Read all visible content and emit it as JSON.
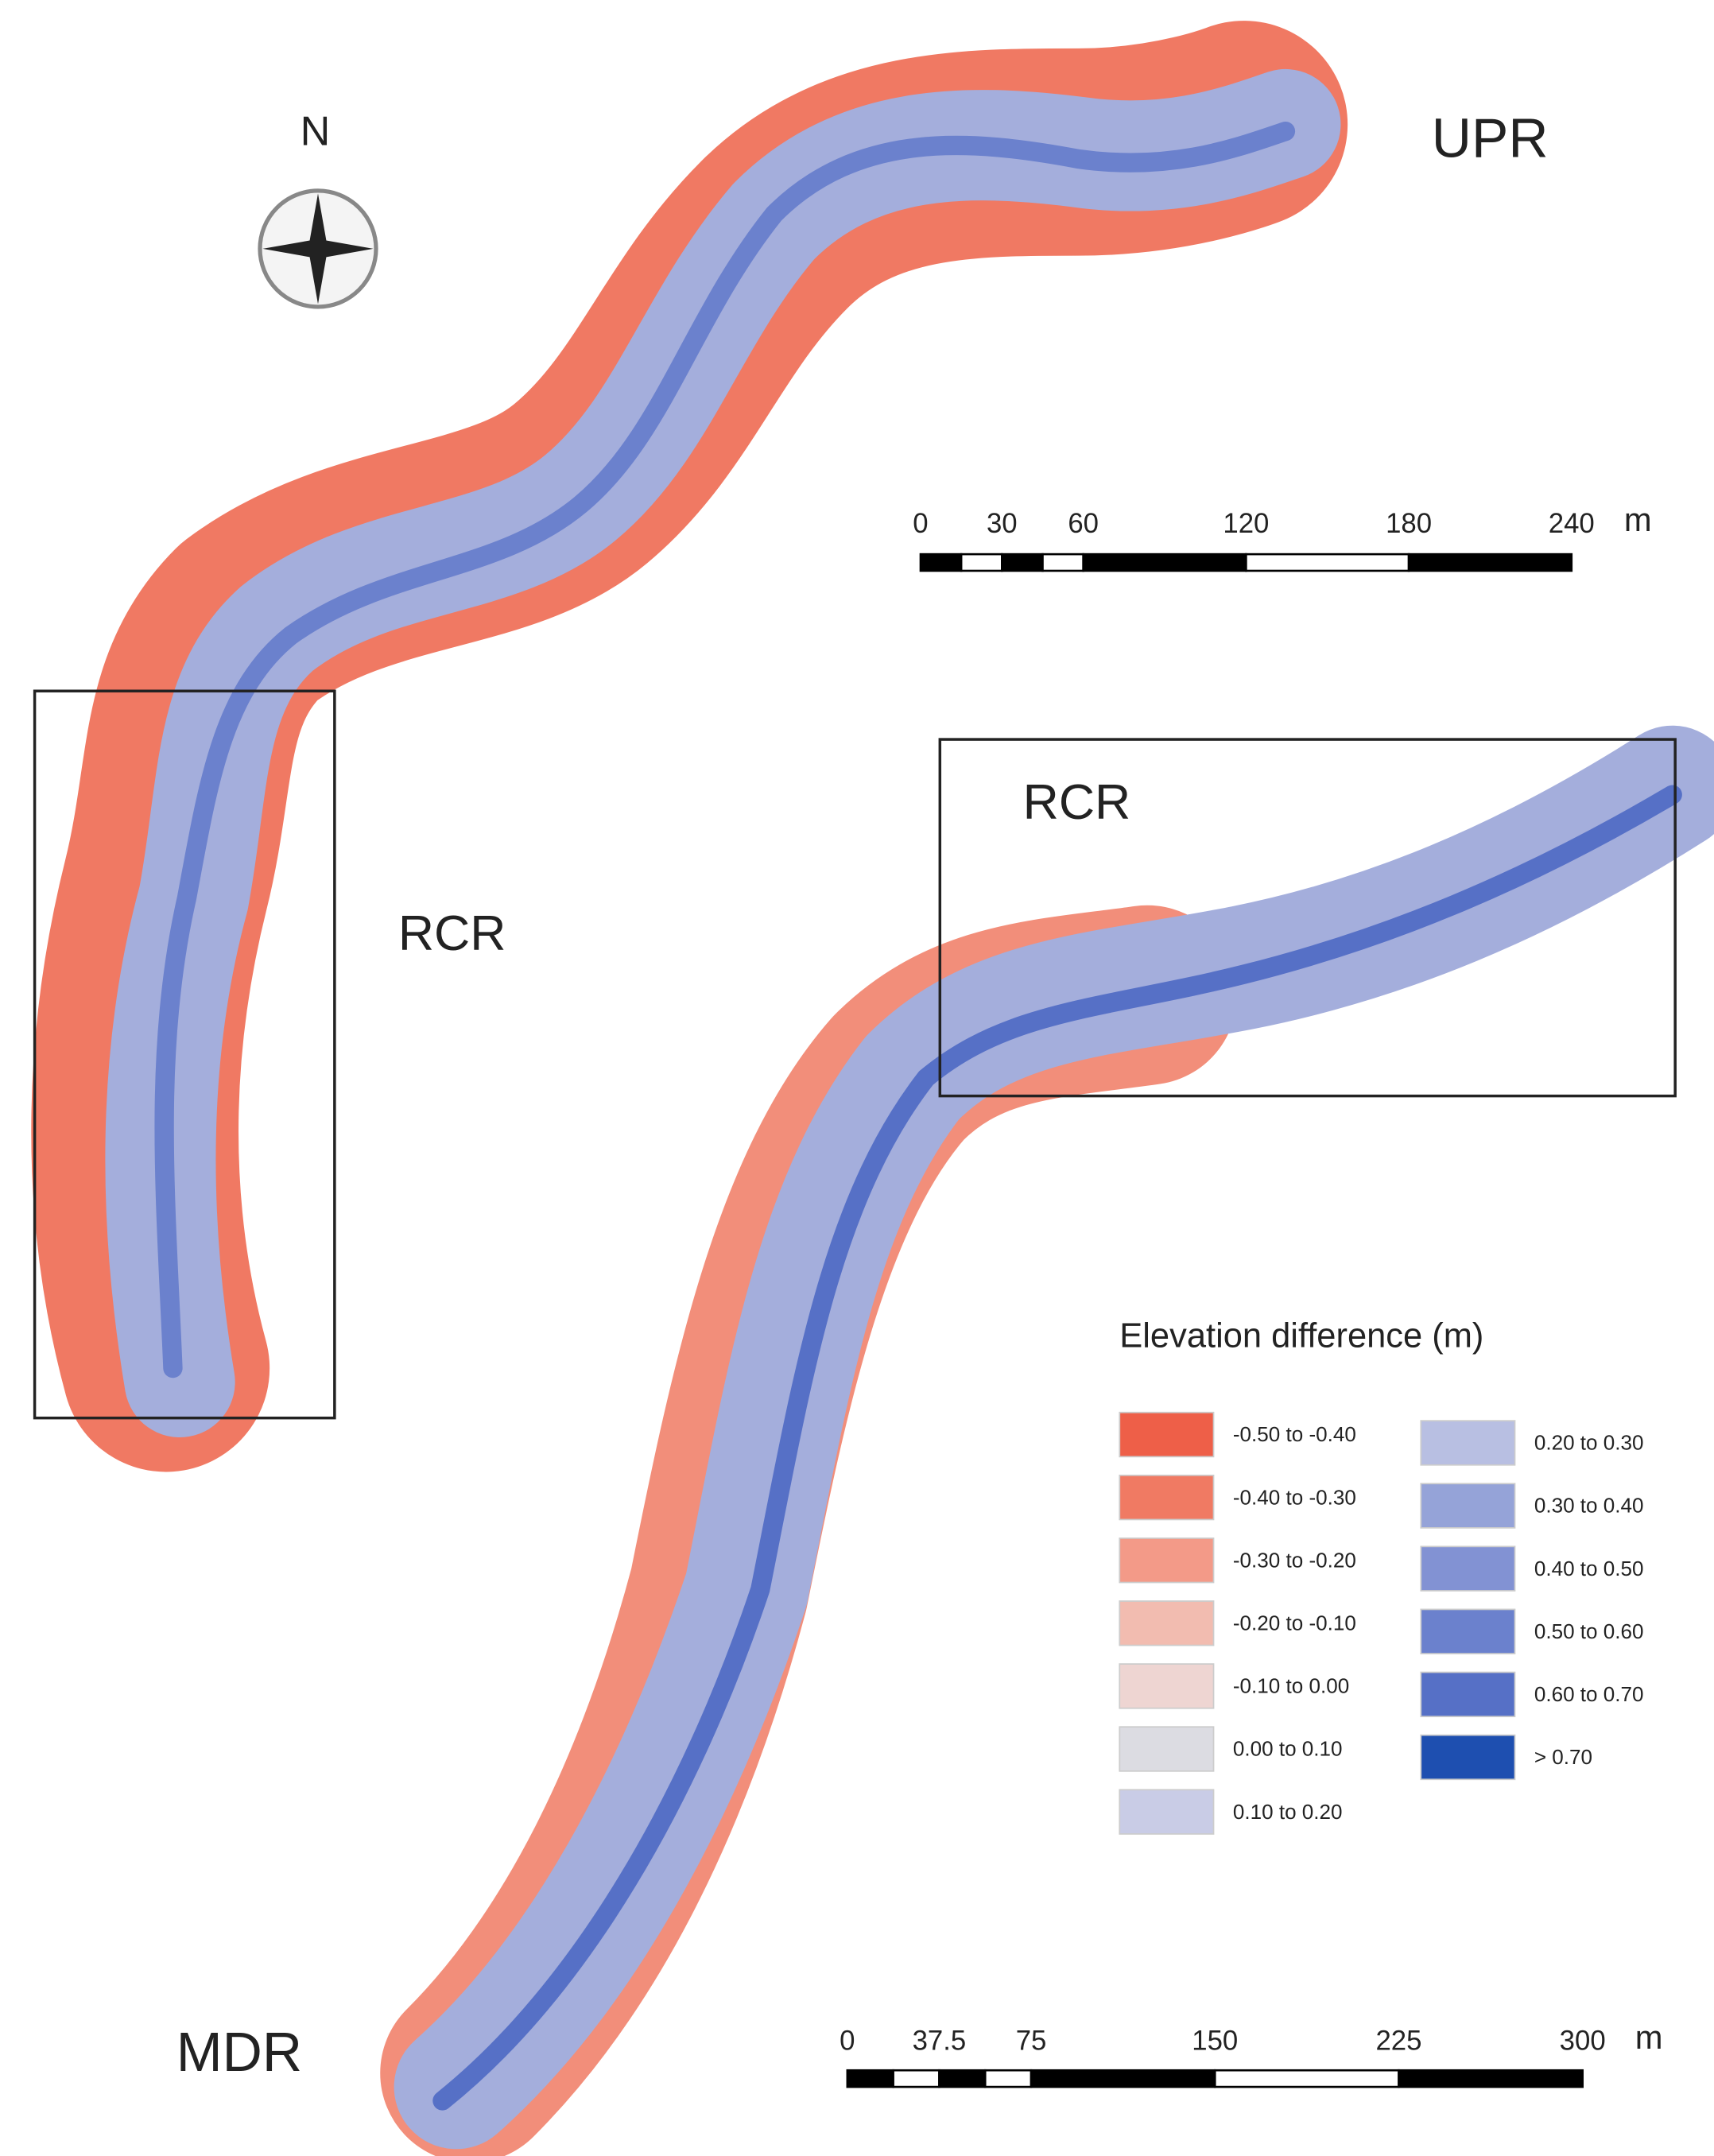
{
  "labels": {
    "north": "N",
    "upr": "UPR",
    "rcr_left": "RCR",
    "rcr_right": "RCR",
    "mdr": "MDR"
  },
  "scale_bars": [
    {
      "ticks": [
        0,
        30,
        60,
        120,
        180,
        240
      ],
      "unit": "m"
    },
    {
      "ticks": [
        0,
        37.5,
        75,
        150,
        225,
        300
      ],
      "unit": "m"
    }
  ],
  "legend": {
    "title": "Elevation difference (m)",
    "items": [
      {
        "label": "-0.50 to -0.40",
        "color": "#ee5f48"
      },
      {
        "label": "-0.40 to -0.30",
        "color": "#f07a63"
      },
      {
        "label": "-0.30 to -0.20",
        "color": "#f39a88"
      },
      {
        "label": "-0.20 to -0.10",
        "color": "#f2bcb0"
      },
      {
        "label": "-0.10 to 0.00",
        "color": "#eed5d2"
      },
      {
        "label": "0.00 to 0.10",
        "color": "#dcdce2"
      },
      {
        "label": "0.10 to 0.20",
        "color": "#c9cce6"
      },
      {
        "label": "0.20 to 0.30",
        "color": "#b8bfe2"
      },
      {
        "label": "0.30 to 0.40",
        "color": "#95a3d8"
      },
      {
        "label": "0.40 to 0.50",
        "color": "#8292d3"
      },
      {
        "label": "0.50 to 0.60",
        "color": "#6b81cd"
      },
      {
        "label": "0.60 to 0.70",
        "color": "#5670c6"
      },
      {
        "label": "> 0.70",
        "color": "#1e4fb0"
      }
    ]
  }
}
